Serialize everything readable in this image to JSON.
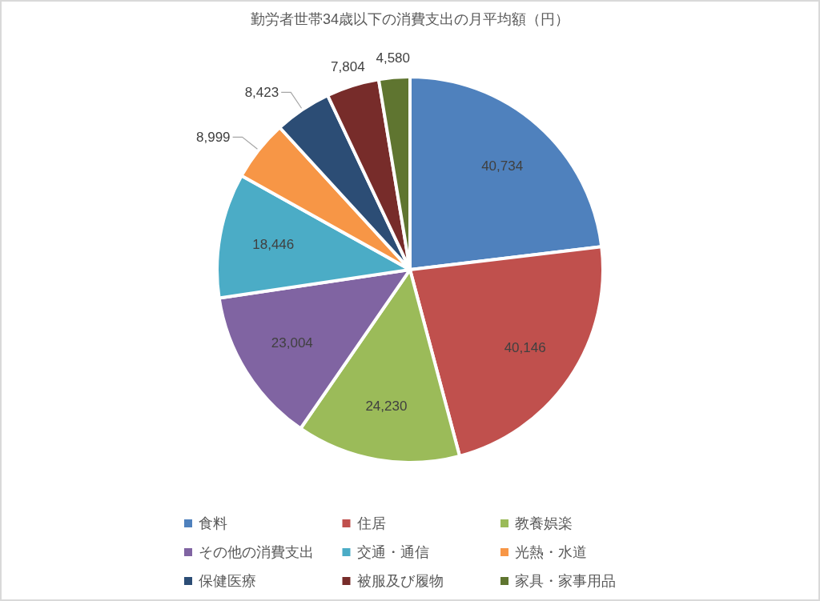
{
  "chart_data": {
    "type": "pie",
    "title": "勤労者世帯34歳以下の消費支出の月平均額（円）",
    "categories": [
      "食料",
      "住居",
      "教養娯楽",
      "その他の消費支出",
      "交通・通信",
      "光熱・水道",
      "保健医療",
      "被服及び履物",
      "家具・家事用品"
    ],
    "values": [
      40734,
      40146,
      24230,
      23004,
      18446,
      8999,
      8423,
      7804,
      4580
    ],
    "value_labels": [
      "40,734",
      "40,146",
      "24,230",
      "23,004",
      "18,446",
      "8,999",
      "8,423",
      "7,804",
      "4,580"
    ],
    "colors": [
      "#4f81bd",
      "#c0504d",
      "#9bbb59",
      "#8064a2",
      "#4bacc6",
      "#f79646",
      "#2c4d75",
      "#772c2a",
      "#5f7530"
    ],
    "legend": "bottom"
  }
}
